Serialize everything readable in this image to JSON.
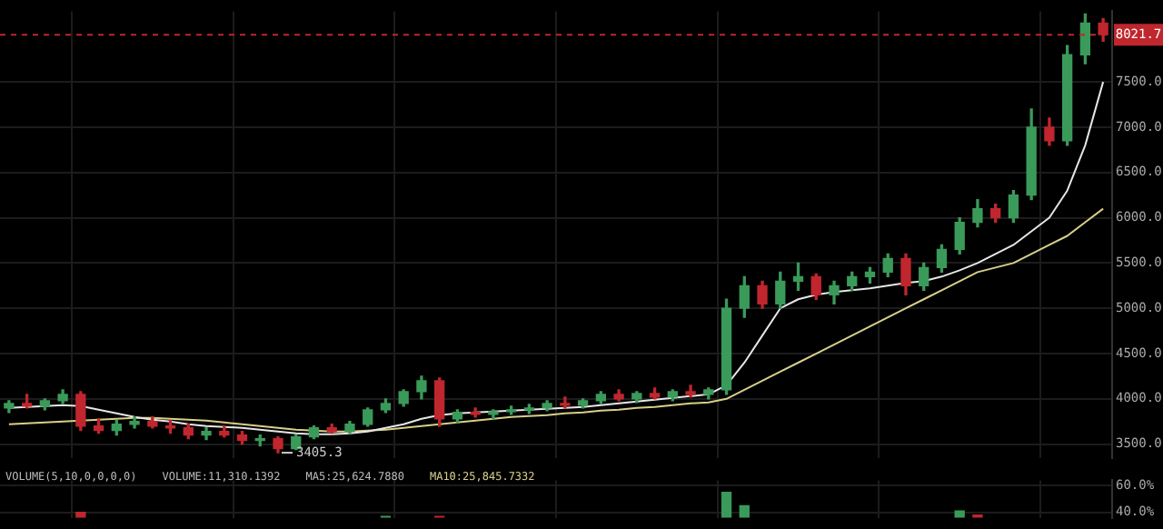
{
  "chart_data": [
    {
      "type": "candlestick",
      "categories": [
        null,
        null,
        null,
        null,
        null,
        null,
        null,
        null,
        null,
        null,
        null,
        null,
        null,
        null,
        null,
        null,
        null,
        null,
        null,
        null,
        null,
        null,
        null,
        null,
        null,
        null,
        null,
        null,
        null,
        null,
        null,
        null,
        null,
        null,
        null,
        null,
        null,
        null,
        null,
        null,
        null,
        null,
        null,
        null,
        null,
        null,
        null,
        null,
        null,
        null,
        null,
        null,
        null,
        null,
        null,
        null,
        null,
        null,
        null,
        null,
        null,
        null
      ],
      "ohlc": [
        [
          3900,
          3980,
          3850,
          3950
        ],
        [
          3950,
          4050,
          3900,
          3920
        ],
        [
          3920,
          4000,
          3880,
          3980
        ],
        [
          3980,
          4100,
          3950,
          4050
        ],
        [
          4050,
          4080,
          3650,
          3700
        ],
        [
          3700,
          3780,
          3620,
          3650
        ],
        [
          3650,
          3760,
          3600,
          3720
        ],
        [
          3720,
          3800,
          3680,
          3750
        ],
        [
          3750,
          3800,
          3680,
          3700
        ],
        [
          3700,
          3760,
          3620,
          3680
        ],
        [
          3680,
          3720,
          3560,
          3600
        ],
        [
          3600,
          3680,
          3550,
          3640
        ],
        [
          3640,
          3700,
          3580,
          3600
        ],
        [
          3600,
          3640,
          3500,
          3540
        ],
        [
          3540,
          3600,
          3480,
          3560
        ],
        [
          3560,
          3580,
          3405.3,
          3450
        ],
        [
          3450,
          3600,
          3440,
          3580
        ],
        [
          3580,
          3700,
          3560,
          3680
        ],
        [
          3680,
          3720,
          3620,
          3640
        ],
        [
          3640,
          3750,
          3620,
          3720
        ],
        [
          3720,
          3900,
          3700,
          3880
        ],
        [
          3880,
          4000,
          3850,
          3950
        ],
        [
          3950,
          4100,
          3920,
          4080
        ],
        [
          4080,
          4250,
          4000,
          4200
        ],
        [
          4200,
          4230,
          3700,
          3780
        ],
        [
          3780,
          3880,
          3740,
          3850
        ],
        [
          3850,
          3900,
          3800,
          3830
        ],
        [
          3830,
          3880,
          3780,
          3860
        ],
        [
          3860,
          3920,
          3830,
          3880
        ],
        [
          3880,
          3940,
          3840,
          3900
        ],
        [
          3900,
          3980,
          3870,
          3950
        ],
        [
          3950,
          4020,
          3900,
          3930
        ],
        [
          3930,
          4000,
          3900,
          3980
        ],
        [
          3980,
          4080,
          3950,
          4050
        ],
        [
          4050,
          4100,
          3980,
          4000
        ],
        [
          4000,
          4080,
          3960,
          4060
        ],
        [
          4060,
          4120,
          4000,
          4020
        ],
        [
          4020,
          4100,
          3980,
          4080
        ],
        [
          4080,
          4150,
          4020,
          4050
        ],
        [
          4050,
          4120,
          4000,
          4100
        ],
        [
          4100,
          5100,
          4050,
          5000
        ],
        [
          5000,
          5350,
          4900,
          5250
        ],
        [
          5250,
          5300,
          5000,
          5050
        ],
        [
          5050,
          5400,
          5000,
          5300
        ],
        [
          5300,
          5500,
          5200,
          5350
        ],
        [
          5350,
          5380,
          5100,
          5150
        ],
        [
          5150,
          5300,
          5050,
          5250
        ],
        [
          5250,
          5400,
          5200,
          5350
        ],
        [
          5350,
          5450,
          5280,
          5400
        ],
        [
          5400,
          5600,
          5350,
          5550
        ],
        [
          5550,
          5600,
          5150,
          5250
        ],
        [
          5250,
          5500,
          5200,
          5450
        ],
        [
          5450,
          5700,
          5400,
          5650
        ],
        [
          5650,
          6000,
          5600,
          5950
        ],
        [
          5950,
          6200,
          5900,
          6100
        ],
        [
          6100,
          6150,
          5950,
          6000
        ],
        [
          6000,
          6300,
          5950,
          6250
        ],
        [
          6250,
          7200,
          6200,
          7000
        ],
        [
          7000,
          7100,
          6800,
          6850
        ],
        [
          6850,
          7900,
          6800,
          7800
        ],
        [
          7800,
          8250,
          7700,
          8150
        ],
        [
          8150,
          8200,
          7950,
          8021.7
        ]
      ],
      "colors": [
        "#3a9a5a",
        "#c0262d",
        "#3a9a5a",
        "#3a9a5a",
        "#c0262d",
        "#c0262d",
        "#3a9a5a",
        "#3a9a5a",
        "#c0262d",
        "#c0262d",
        "#c0262d",
        "#3a9a5a",
        "#c0262d",
        "#c0262d",
        "#3a9a5a",
        "#c0262d",
        "#3a9a5a",
        "#3a9a5a",
        "#c0262d",
        "#3a9a5a",
        "#3a9a5a",
        "#3a9a5a",
        "#3a9a5a",
        "#3a9a5a",
        "#c0262d",
        "#3a9a5a",
        "#c0262d",
        "#3a9a5a",
        "#3a9a5a",
        "#3a9a5a",
        "#3a9a5a",
        "#c0262d",
        "#3a9a5a",
        "#3a9a5a",
        "#c0262d",
        "#3a9a5a",
        "#c0262d",
        "#3a9a5a",
        "#c0262d",
        "#3a9a5a",
        "#3a9a5a",
        "#3a9a5a",
        "#c0262d",
        "#3a9a5a",
        "#3a9a5a",
        "#c0262d",
        "#3a9a5a",
        "#3a9a5a",
        "#3a9a5a",
        "#3a9a5a",
        "#c0262d",
        "#3a9a5a",
        "#3a9a5a",
        "#3a9a5a",
        "#3a9a5a",
        "#c0262d",
        "#3a9a5a",
        "#3a9a5a",
        "#c0262d",
        "#3a9a5a",
        "#3a9a5a",
        "#c0262d"
      ],
      "series": [
        {
          "type": "line",
          "color": "#e6e6e6",
          "values": [
            3900,
            3910,
            3920,
            3930,
            3920,
            3880,
            3840,
            3800,
            3770,
            3750,
            3720,
            3700,
            3690,
            3680,
            3660,
            3640,
            3620,
            3610,
            3610,
            3620,
            3640,
            3680,
            3720,
            3780,
            3820,
            3840,
            3850,
            3860,
            3870,
            3880,
            3890,
            3900,
            3910,
            3930,
            3950,
            3970,
            3990,
            4010,
            4030,
            4050,
            4150,
            4400,
            4700,
            5000,
            5100,
            5150,
            5180,
            5200,
            5220,
            5250,
            5280,
            5300,
            5350,
            5420,
            5500,
            5600,
            5700,
            5850,
            6000,
            6300,
            6800,
            7500
          ]
        },
        {
          "type": "line",
          "color": "#d8cf8a",
          "values": [
            3720,
            3730,
            3740,
            3750,
            3760,
            3770,
            3780,
            3790,
            3790,
            3780,
            3770,
            3760,
            3740,
            3720,
            3700,
            3680,
            3660,
            3650,
            3640,
            3640,
            3650,
            3660,
            3680,
            3700,
            3720,
            3740,
            3760,
            3780,
            3800,
            3810,
            3820,
            3840,
            3850,
            3870,
            3880,
            3900,
            3910,
            3930,
            3950,
            3960,
            4000,
            4100,
            4200,
            4300,
            4400,
            4500,
            4600,
            4700,
            4800,
            4900,
            5000,
            5100,
            5200,
            5300,
            5400,
            5450,
            5500,
            5600,
            5700,
            5800,
            5950,
            6100
          ]
        }
      ],
      "ylim": [
        3350,
        8280
      ],
      "yticks": [
        {
          "value": 3500,
          "label": "3500.0"
        },
        {
          "value": 4000,
          "label": "4000.0"
        },
        {
          "value": 4500,
          "label": "4500.0"
        },
        {
          "value": 5000,
          "label": "5000.0"
        },
        {
          "value": 5500,
          "label": "5500.0"
        },
        {
          "value": 6000,
          "label": "6000.0"
        },
        {
          "value": 6500,
          "label": "6500.0"
        },
        {
          "value": 7000,
          "label": "7000.0"
        },
        {
          "value": 7500,
          "label": "7500.0"
        }
      ],
      "grid": true,
      "tick_labels": "y",
      "ref_lines": [
        {
          "axis": "y",
          "value": 8021.7,
          "label": "8021.7",
          "color": "#c0262d",
          "line_style": "dashed"
        }
      ],
      "annotations": [
        "3405.3"
      ]
    },
    {
      "type": "bar",
      "categories": [
        null,
        null,
        null,
        null,
        null,
        null,
        null,
        null,
        null,
        null,
        null,
        null,
        null,
        null,
        null,
        null,
        null,
        null,
        null,
        null,
        null,
        null,
        null,
        null,
        null,
        null,
        null,
        null,
        null,
        null,
        null,
        null,
        null,
        null,
        null,
        null,
        null,
        null,
        null,
        null,
        null,
        null,
        null,
        null,
        null,
        null,
        null,
        null,
        null,
        null,
        null,
        null,
        null,
        null,
        null,
        null,
        null,
        null,
        null,
        null,
        null,
        null
      ],
      "values": [
        null,
        null,
        null,
        null,
        40,
        null,
        null,
        null,
        null,
        null,
        null,
        null,
        null,
        null,
        null,
        null,
        null,
        null,
        null,
        null,
        null,
        37,
        null,
        null,
        37,
        null,
        null,
        null,
        null,
        null,
        null,
        null,
        null,
        null,
        null,
        null,
        null,
        null,
        null,
        null,
        55,
        45,
        null,
        null,
        null,
        null,
        null,
        null,
        null,
        null,
        null,
        null,
        null,
        41,
        38,
        null,
        null,
        null,
        null,
        null,
        null,
        null
      ],
      "colors": [
        "#3a9a5a",
        "#3a9a5a",
        "#3a9a5a",
        "#3a9a5a",
        "#c0262d",
        "#3a9a5a",
        "#3a9a5a",
        "#3a9a5a",
        "#3a9a5a",
        "#3a9a5a",
        "#3a9a5a",
        "#3a9a5a",
        "#3a9a5a",
        "#3a9a5a",
        "#3a9a5a",
        "#3a9a5a",
        "#3a9a5a",
        "#3a9a5a",
        "#3a9a5a",
        "#3a9a5a",
        "#3a9a5a",
        "#3a9a5a",
        "#3a9a5a",
        "#3a9a5a",
        "#c0262d",
        "#3a9a5a",
        "#3a9a5a",
        "#3a9a5a",
        "#3a9a5a",
        "#3a9a5a",
        "#3a9a5a",
        "#3a9a5a",
        "#3a9a5a",
        "#3a9a5a",
        "#3a9a5a",
        "#3a9a5a",
        "#3a9a5a",
        "#3a9a5a",
        "#3a9a5a",
        "#3a9a5a",
        "#3a9a5a",
        "#3a9a5a",
        "#3a9a5a",
        "#3a9a5a",
        "#3a9a5a",
        "#3a9a5a",
        "#3a9a5a",
        "#3a9a5a",
        "#3a9a5a",
        "#3a9a5a",
        "#3a9a5a",
        "#3a9a5a",
        "#3a9a5a",
        "#3a9a5a",
        "#c0262d",
        "#3a9a5a",
        "#3a9a5a",
        "#3a9a5a",
        "#3a9a5a",
        "#3a9a5a",
        "#3a9a5a",
        "#3a9a5a"
      ],
      "ylim": [
        36,
        64
      ],
      "yticks": [
        {
          "value": 40,
          "label": "40.0%"
        },
        {
          "value": 60,
          "label": "60.0%"
        }
      ],
      "grid": true,
      "tick_labels": "y",
      "annotations": [
        "VOLUME(5,10,0,0,0,0)",
        "VOLUME:11,310.1392",
        "MA5:25,624.7880",
        "MA10:25,845.7332"
      ]
    }
  ]
}
